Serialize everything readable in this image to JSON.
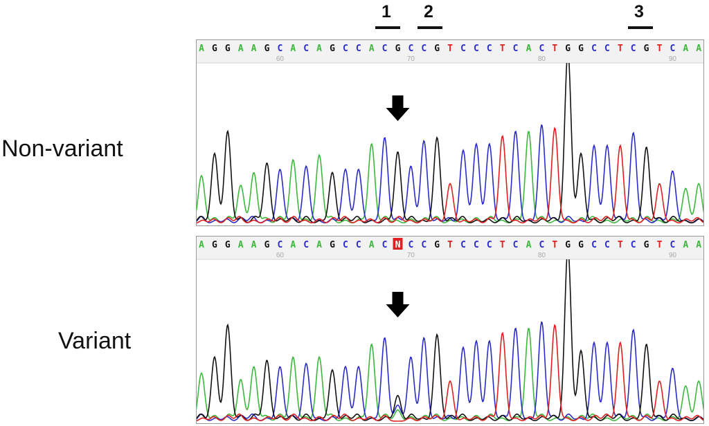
{
  "labels": {
    "non_variant": "Non-variant",
    "variant": "Variant"
  },
  "markers": [
    {
      "label": "1",
      "base_position": 70
    },
    {
      "label": "2",
      "base_position": 72
    },
    {
      "label": "3",
      "base_position": 89
    }
  ],
  "colors": {
    "A": "#3cb83c",
    "C": "#2b2bc8",
    "G": "#111111",
    "T": "#e02020",
    "N": "#e02020",
    "arrow": "#000000"
  },
  "tracks": [
    {
      "sequence": [
        "A",
        "G",
        "G",
        "A",
        "A",
        "G",
        "C",
        "A",
        "C",
        "A",
        "G",
        "C",
        "C",
        "A",
        "C",
        "G",
        "C",
        "C",
        "G",
        "T",
        "C",
        "C",
        "C",
        "T",
        "C",
        "A",
        "C",
        "T",
        "G",
        "G",
        "C",
        "C",
        "T",
        "C",
        "G",
        "T",
        "C",
        "A",
        "A"
      ],
      "position_ticks": [
        "60",
        "70",
        "80",
        "90"
      ],
      "arrow_position": 69
    },
    {
      "sequence": [
        "A",
        "G",
        "G",
        "A",
        "A",
        "G",
        "C",
        "A",
        "C",
        "A",
        "G",
        "C",
        "C",
        "A",
        "C",
        "N",
        "C",
        "C",
        "G",
        "T",
        "C",
        "C",
        "C",
        "T",
        "C",
        "A",
        "C",
        "T",
        "G",
        "G",
        "C",
        "C",
        "T",
        "C",
        "G",
        "T",
        "C",
        "A",
        "A"
      ],
      "position_ticks": [
        "60",
        "70",
        "80",
        "90"
      ],
      "arrow_position": 69,
      "highlighted_base": "N"
    }
  ]
}
